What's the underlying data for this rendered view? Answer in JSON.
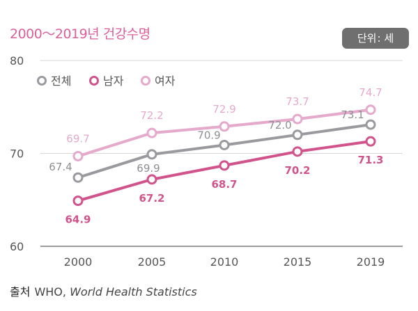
{
  "header": {
    "title": "2000～2019년 건강수명",
    "unit_label": "단위",
    "unit_value": "세"
  },
  "source": {
    "label": "출처",
    "org": "WHO,",
    "publication": "World Health Statistics"
  },
  "colors": {
    "total": "#9a999e",
    "male": "#d0548b",
    "female": "#e4a9cb",
    "grid": "#d6d6d6",
    "axis": "#7a7a7a"
  },
  "chart_data": {
    "type": "line",
    "title": "2000～2019년 건강수명",
    "xlabel": "",
    "ylabel": "",
    "unit": "세",
    "categories": [
      "2000",
      "2005",
      "2010",
      "2015",
      "2019"
    ],
    "ylim": [
      60,
      80
    ],
    "yticks": [
      "60",
      "70",
      "80"
    ],
    "legend_position": "top-left",
    "series": [
      {
        "key": "total",
        "name": "전체",
        "values": [
          67.4,
          69.9,
          70.9,
          72.0,
          73.1
        ]
      },
      {
        "key": "male",
        "name": "남자",
        "values": [
          64.9,
          67.2,
          68.7,
          70.2,
          71.3
        ]
      },
      {
        "key": "female",
        "name": "여자",
        "values": [
          69.7,
          72.2,
          72.9,
          73.7,
          74.7
        ]
      }
    ]
  }
}
